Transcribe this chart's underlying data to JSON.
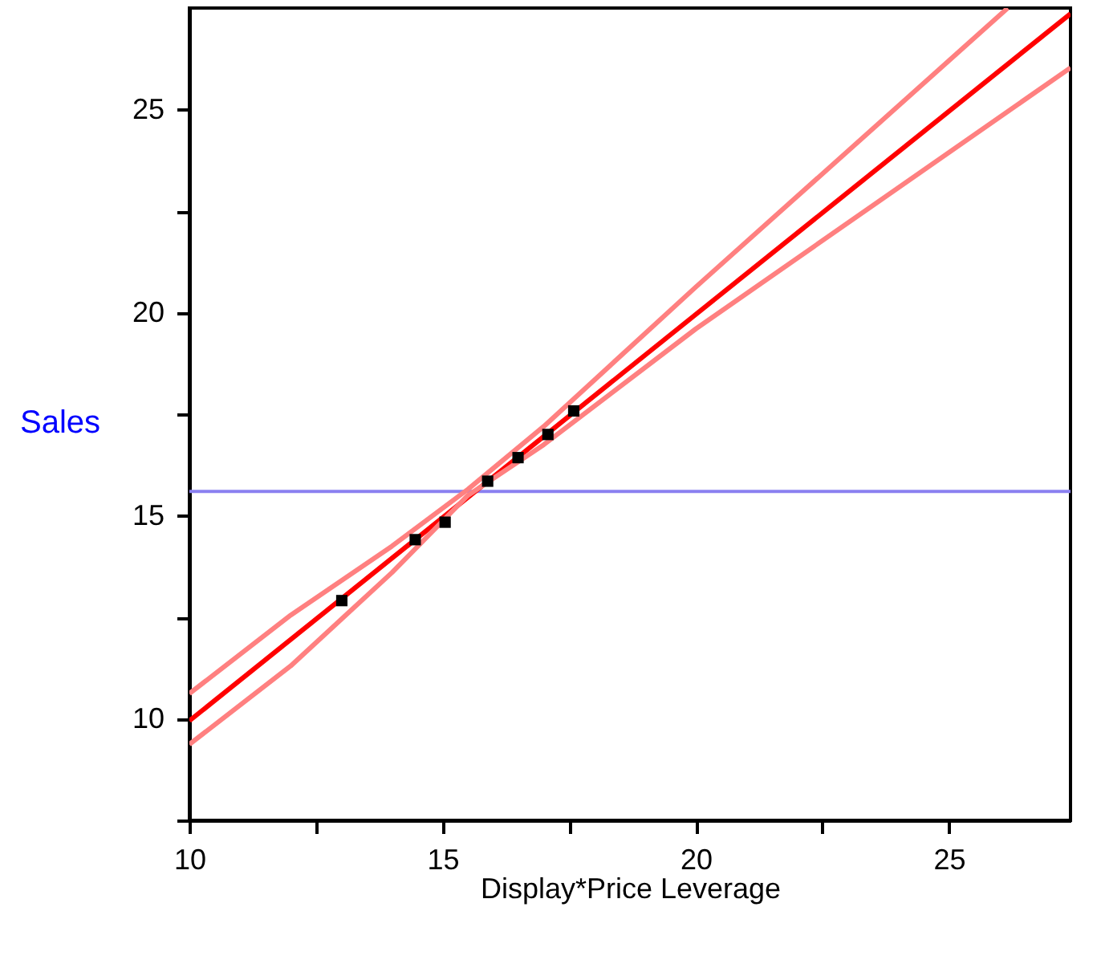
{
  "chart_data": {
    "type": "scatter",
    "xlabel": "Display*Price   Leverage",
    "ylabel": "Sales",
    "xlim": [
      10,
      27.4
    ],
    "ylim": [
      7.5,
      27.5
    ],
    "xticks": [
      10,
      {
        "value": 12.5,
        "label": null
      },
      15,
      {
        "value": 17.5,
        "label": null
      },
      20,
      {
        "value": 22.5,
        "label": null
      },
      25
    ],
    "yticks": [
      {
        "value": 7.5,
        "label": null
      },
      10,
      {
        "value": 12.5,
        "label": null
      },
      15,
      {
        "value": 17.5,
        "label": null
      },
      20,
      {
        "value": 22.5,
        "label": null
      },
      25
    ],
    "grid": false,
    "series": [
      {
        "marker": "square",
        "color": "#000000",
        "x": [
          13.01,
          14.46,
          15.05,
          15.89,
          16.49,
          17.08,
          17.59
        ],
        "values": [
          12.91,
          14.41,
          14.84,
          15.85,
          16.43,
          17.0,
          17.58
        ]
      },
      {
        "type": "line",
        "marker": "none",
        "color": "#ff0000",
        "x": [
          10,
          27.4
        ],
        "values": [
          9.95,
          27.36
        ]
      },
      {
        "type": "line",
        "marker": "none",
        "color": "#ff8080",
        "x": [
          10,
          12,
          14,
          15.5,
          17,
          20,
          26.16
        ],
        "values": [
          10.62,
          12.55,
          14.25,
          15.65,
          17.2,
          20.63,
          27.5
        ]
      },
      {
        "type": "line",
        "marker": "none",
        "color": "#ff8080",
        "x": [
          10,
          12,
          14,
          15.5,
          17,
          20,
          27.4
        ],
        "values": [
          9.37,
          11.3,
          13.6,
          15.5,
          16.75,
          19.6,
          26.03
        ]
      }
    ],
    "ref_lines": [
      {
        "axis": "y",
        "value": 15.6,
        "color": "#8a80f0"
      }
    ]
  }
}
